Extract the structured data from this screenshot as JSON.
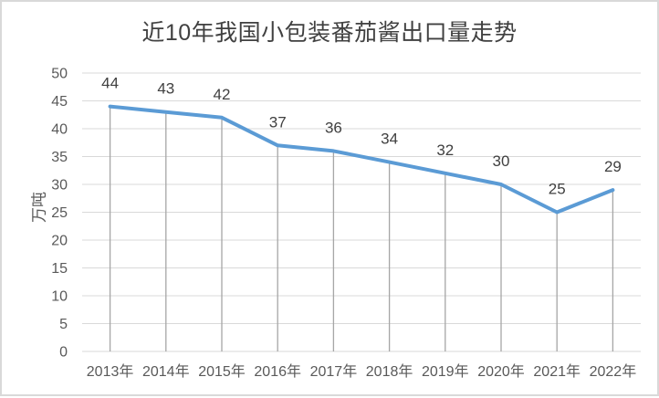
{
  "chart_data": {
    "type": "line",
    "title": "近10年我国小包装番茄酱出口量走势",
    "ylabel": "万吨",
    "xlabel": "",
    "categories": [
      "2013年",
      "2014年",
      "2015年",
      "2016年",
      "2017年",
      "2018年",
      "2019年",
      "2020年",
      "2021年",
      "2022年"
    ],
    "values": [
      44,
      43,
      42,
      37,
      36,
      34,
      32,
      30,
      25,
      29
    ],
    "data_labels_shown": true,
    "ylim": [
      0,
      50
    ],
    "ytick_step": 5,
    "yticks": [
      0,
      5,
      10,
      15,
      20,
      25,
      30,
      35,
      40,
      45,
      50
    ],
    "grid": "horizontal",
    "drop_lines": true,
    "legend": "none",
    "colors": {
      "line": "#5B9BD5",
      "gridline": "#D9D9D9",
      "drop_line": "#A6A6A6",
      "tick_text": "#595959",
      "data_label_text": "#404040",
      "title_text": "#404040",
      "border": "#D9D9D9"
    }
  }
}
